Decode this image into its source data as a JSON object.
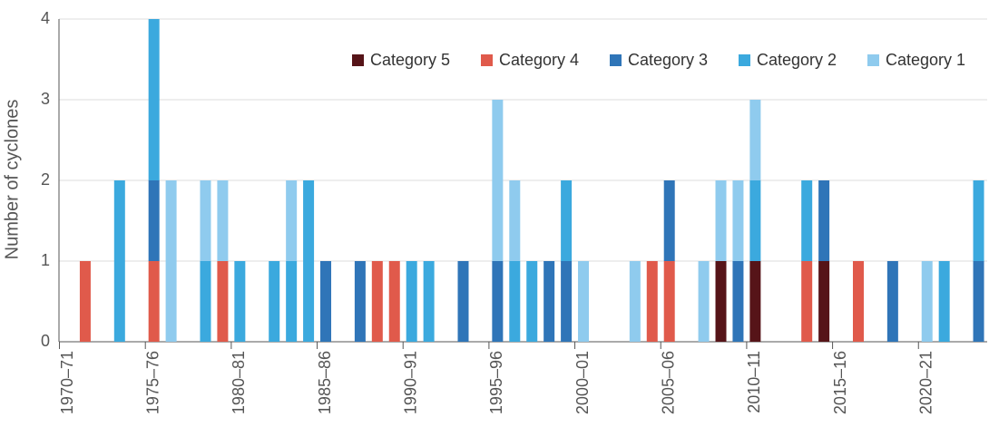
{
  "chart_data": {
    "type": "stacked_bar",
    "y_label": "Number of cyclones",
    "categories": [
      "1970–71",
      null,
      null,
      null,
      null,
      "1975–76",
      null,
      null,
      null,
      null,
      "1980–81",
      null,
      null,
      null,
      null,
      "1985–86",
      null,
      null,
      null,
      null,
      "1990–91",
      null,
      null,
      null,
      null,
      "1995–96",
      null,
      null,
      null,
      null,
      "2000–01",
      null,
      null,
      null,
      null,
      "2005–06",
      null,
      null,
      null,
      null,
      "2010–11",
      null,
      null,
      null,
      null,
      "2015–16",
      null,
      null,
      null,
      null,
      "2020–21",
      null,
      null,
      null
    ],
    "series": [
      {
        "name": "Category 5",
        "color": "#561418",
        "values": [
          0,
          0,
          0,
          0,
          0,
          0,
          0,
          0,
          0,
          0,
          0,
          0,
          0,
          0,
          0,
          0,
          0,
          0,
          0,
          0,
          0,
          0,
          0,
          0,
          0,
          0,
          0,
          0,
          0,
          0,
          0,
          0,
          0,
          0,
          0,
          0,
          0,
          0,
          1,
          0,
          1,
          0,
          0,
          0,
          1,
          0,
          0,
          0,
          0,
          0,
          0,
          0,
          0,
          0
        ]
      },
      {
        "name": "Category 4",
        "color": "#e05a4b",
        "values": [
          0,
          1,
          0,
          0,
          0,
          1,
          0,
          0,
          0,
          1,
          0,
          0,
          0,
          0,
          0,
          0,
          0,
          0,
          1,
          1,
          0,
          0,
          0,
          0,
          0,
          0,
          0,
          0,
          0,
          0,
          0,
          0,
          0,
          0,
          1,
          1,
          0,
          0,
          0,
          0,
          0,
          0,
          0,
          1,
          0,
          0,
          1,
          0,
          0,
          0,
          0,
          0,
          0,
          0
        ]
      },
      {
        "name": "Category 3",
        "color": "#2f75b8",
        "values": [
          0,
          0,
          0,
          0,
          0,
          1,
          0,
          0,
          0,
          0,
          0,
          0,
          0,
          0,
          0,
          1,
          0,
          1,
          0,
          0,
          0,
          0,
          0,
          1,
          0,
          1,
          0,
          0,
          1,
          1,
          0,
          0,
          0,
          0,
          0,
          1,
          0,
          0,
          0,
          1,
          0,
          0,
          0,
          0,
          1,
          0,
          0,
          0,
          1,
          0,
          0,
          0,
          0,
          1
        ]
      },
      {
        "name": "Category 2",
        "color": "#3ba9de",
        "values": [
          0,
          0,
          0,
          2,
          0,
          2,
          0,
          0,
          1,
          0,
          1,
          0,
          1,
          1,
          2,
          0,
          0,
          0,
          0,
          0,
          1,
          1,
          0,
          0,
          0,
          0,
          1,
          1,
          0,
          1,
          0,
          0,
          0,
          0,
          0,
          0,
          0,
          0,
          0,
          0,
          1,
          0,
          0,
          1,
          0,
          0,
          0,
          0,
          0,
          0,
          0,
          1,
          0,
          1
        ]
      },
      {
        "name": "Category 1",
        "color": "#8fcbee",
        "values": [
          0,
          0,
          0,
          0,
          0,
          0,
          2,
          0,
          1,
          1,
          0,
          0,
          0,
          1,
          0,
          0,
          0,
          0,
          0,
          0,
          0,
          0,
          0,
          0,
          0,
          2,
          1,
          0,
          0,
          0,
          1,
          0,
          0,
          1,
          0,
          0,
          0,
          1,
          1,
          1,
          1,
          0,
          0,
          0,
          0,
          0,
          0,
          0,
          0,
          0,
          1,
          0,
          0,
          0
        ]
      }
    ],
    "ylim": [
      0,
      4
    ],
    "yticks": [
      0,
      1,
      2,
      3,
      4
    ],
    "grid": true,
    "legend": "upper right"
  }
}
